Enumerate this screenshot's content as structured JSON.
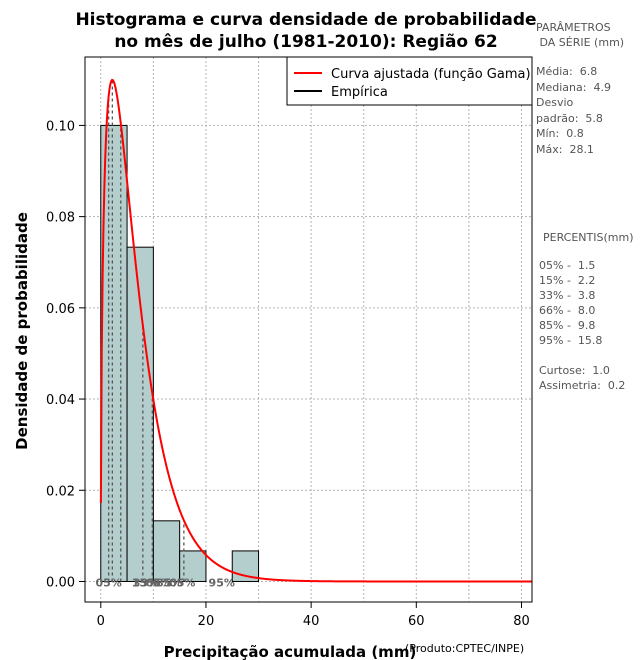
{
  "chart_data": {
    "type": "histogram",
    "title_line1": "Histograma e curva densidade de probabilidade",
    "title_line2": "no mês de julho (1981-2010): Região 62",
    "xlabel": "Precipitação acumulada (mm)",
    "ylabel": "Densidade de probabilidade",
    "source_note": "(Produto:CPTEC/INPE)",
    "xlim": [
      -3,
      82
    ],
    "ylim": [
      -0.0045,
      0.115
    ],
    "x_ticks": [
      0,
      20,
      40,
      60,
      80
    ],
    "x_tick_labels": [
      "0",
      "20",
      "40",
      "60",
      "80"
    ],
    "y_ticks": [
      0.0,
      0.02,
      0.04,
      0.06,
      0.08,
      0.1
    ],
    "y_tick_labels": [
      "0.00",
      "0.02",
      "0.04",
      "0.06",
      "0.08",
      "0.10"
    ],
    "grid_x": [
      0,
      10,
      20,
      30,
      40,
      50,
      60,
      70,
      80
    ],
    "grid_y": [
      0.0,
      0.02,
      0.04,
      0.06,
      0.08,
      0.1
    ],
    "bins": [
      {
        "start": 0,
        "end": 5,
        "density": 0.1
      },
      {
        "start": 5,
        "end": 10,
        "density": 0.0733
      },
      {
        "start": 10,
        "end": 15,
        "density": 0.0133
      },
      {
        "start": 15,
        "end": 20,
        "density": 0.0067
      },
      {
        "start": 20,
        "end": 25,
        "density": 0.0
      },
      {
        "start": 25,
        "end": 30,
        "density": 0.0067
      }
    ],
    "gamma_fit": {
      "shape": 1.5,
      "scale": 4.4,
      "x_max": 82
    },
    "percentile_lines": [
      {
        "value": 1.5,
        "label": "05%"
      },
      {
        "value": 2.2,
        "label": "15%"
      },
      {
        "value": 3.8,
        "label": "33%"
      },
      {
        "value": 8.0,
        "label": "66%"
      },
      {
        "value": 9.8,
        "label": "85%"
      },
      {
        "value": 15.8,
        "label": "95%"
      }
    ],
    "percentile_labels": [
      {
        "x": 1.5,
        "text": "05%"
      },
      {
        "x": 8.4,
        "text": "15%"
      },
      {
        "x": 8.6,
        "text": "33%"
      },
      {
        "x": 11.0,
        "text": "66%"
      },
      {
        "x": 13.0,
        "text": "85%"
      },
      {
        "x": 15.5,
        "text": "05%"
      },
      {
        "x": 23.0,
        "text": "95%"
      }
    ],
    "legend": {
      "position": "top-right",
      "entries": [
        {
          "label": "Curva ajustada (função Gama)",
          "color": "#ff0000"
        },
        {
          "label": "Empírica",
          "color": "#000000"
        }
      ]
    },
    "colors": {
      "bar_fill": "#b4cdcd",
      "bar_stroke": "#000000",
      "curve": "#ff0000",
      "grid": "#b3b3b3",
      "percentile_line": "#555555",
      "percentile_label": "#666666"
    }
  },
  "side_panel": {
    "params_title_1": "PARÂMETROS",
    "params_title_2": " DA SÉRIE (mm)",
    "media": "Média:  6.8",
    "mediana": "Mediana:  4.9",
    "desvio_1": "Desvio",
    "desvio_2": "padrão:  5.8",
    "min": "Mín:  0.8",
    "max": "Máx:  28.1",
    "percentis_title": "PERCENTIS(mm)",
    "p05": "05% -  1.5",
    "p15": "15% -  2.2",
    "p33": "33% -  3.8",
    "p66": "66% -  8.0",
    "p85": "85% -  9.8",
    "p95": "95% -  15.8",
    "curtose": "Curtose:  1.0",
    "assimetria": "Assimetria:  0.2"
  }
}
